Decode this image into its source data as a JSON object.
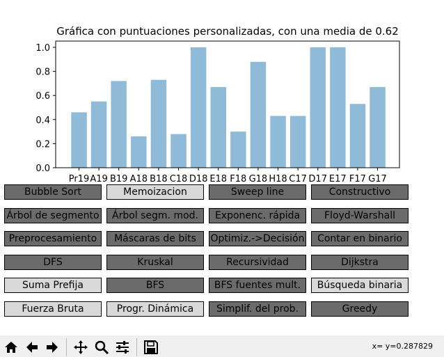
{
  "chart_data": {
    "type": "bar",
    "title": "Gráfica con puntuaciones personalizadas, con una media de 0.62",
    "xlabel": "",
    "ylabel": "",
    "categories": [
      "Pr19",
      "A19",
      "B19",
      "A18",
      "B18",
      "C18",
      "D18",
      "E18",
      "F18",
      "G18",
      "H18",
      "C17",
      "D17",
      "E17",
      "F17",
      "G17"
    ],
    "values": [
      0.46,
      0.55,
      0.72,
      0.26,
      0.73,
      0.28,
      1.0,
      0.67,
      0.3,
      0.88,
      0.43,
      0.43,
      1.0,
      1.0,
      0.53,
      0.67
    ],
    "ylim": [
      0,
      1.05
    ],
    "yticks": [
      "0.0",
      "0.2",
      "0.4",
      "0.6",
      "0.8",
      "1.0"
    ],
    "bar_color": "#8fbbd9",
    "grid": false
  },
  "buttons": [
    {
      "label": "Bubble Sort",
      "state": "dark"
    },
    {
      "label": "Memoizacion",
      "state": "light"
    },
    {
      "label": "Sweep line",
      "state": "dark"
    },
    {
      "label": "Constructivo",
      "state": "dark"
    },
    {
      "label": "Árbol de segmento",
      "state": "dark"
    },
    {
      "label": "Árbol segm. mod.",
      "state": "dark"
    },
    {
      "label": "Exponenc. rápida",
      "state": "dark"
    },
    {
      "label": "Floyd-Warshall",
      "state": "dark"
    },
    {
      "label": "Preprocesamiento",
      "state": "dark"
    },
    {
      "label": "Máscaras de bits",
      "state": "dark"
    },
    {
      "label": "Optimiz.->Decisión",
      "state": "dark"
    },
    {
      "label": "Contar en binario",
      "state": "dark"
    },
    {
      "label": "DFS",
      "state": "dark"
    },
    {
      "label": "Kruskal",
      "state": "dark"
    },
    {
      "label": "Recursividad",
      "state": "dark"
    },
    {
      "label": "Dijkstra",
      "state": "dark"
    },
    {
      "label": "Suma Prefija",
      "state": "light"
    },
    {
      "label": "BFS",
      "state": "dark"
    },
    {
      "label": "BFS fuentes mult.",
      "state": "dark"
    },
    {
      "label": "Búsqueda binaria",
      "state": "light"
    },
    {
      "label": "Fuerza Bruta",
      "state": "light"
    },
    {
      "label": "Progr. Dinámica",
      "state": "light"
    },
    {
      "label": "Simplif. del prob.",
      "state": "dark"
    },
    {
      "label": "Greedy",
      "state": "dark"
    }
  ],
  "colors": {
    "dark": "#6b6b6b",
    "light": "#d9d9d9"
  },
  "toolbar": {
    "icons": [
      "home-icon",
      "back-icon",
      "forward-icon",
      "pan-icon",
      "zoom-icon",
      "configure-subplots-icon",
      "save-icon"
    ],
    "coords": "x= y=0.287829"
  }
}
